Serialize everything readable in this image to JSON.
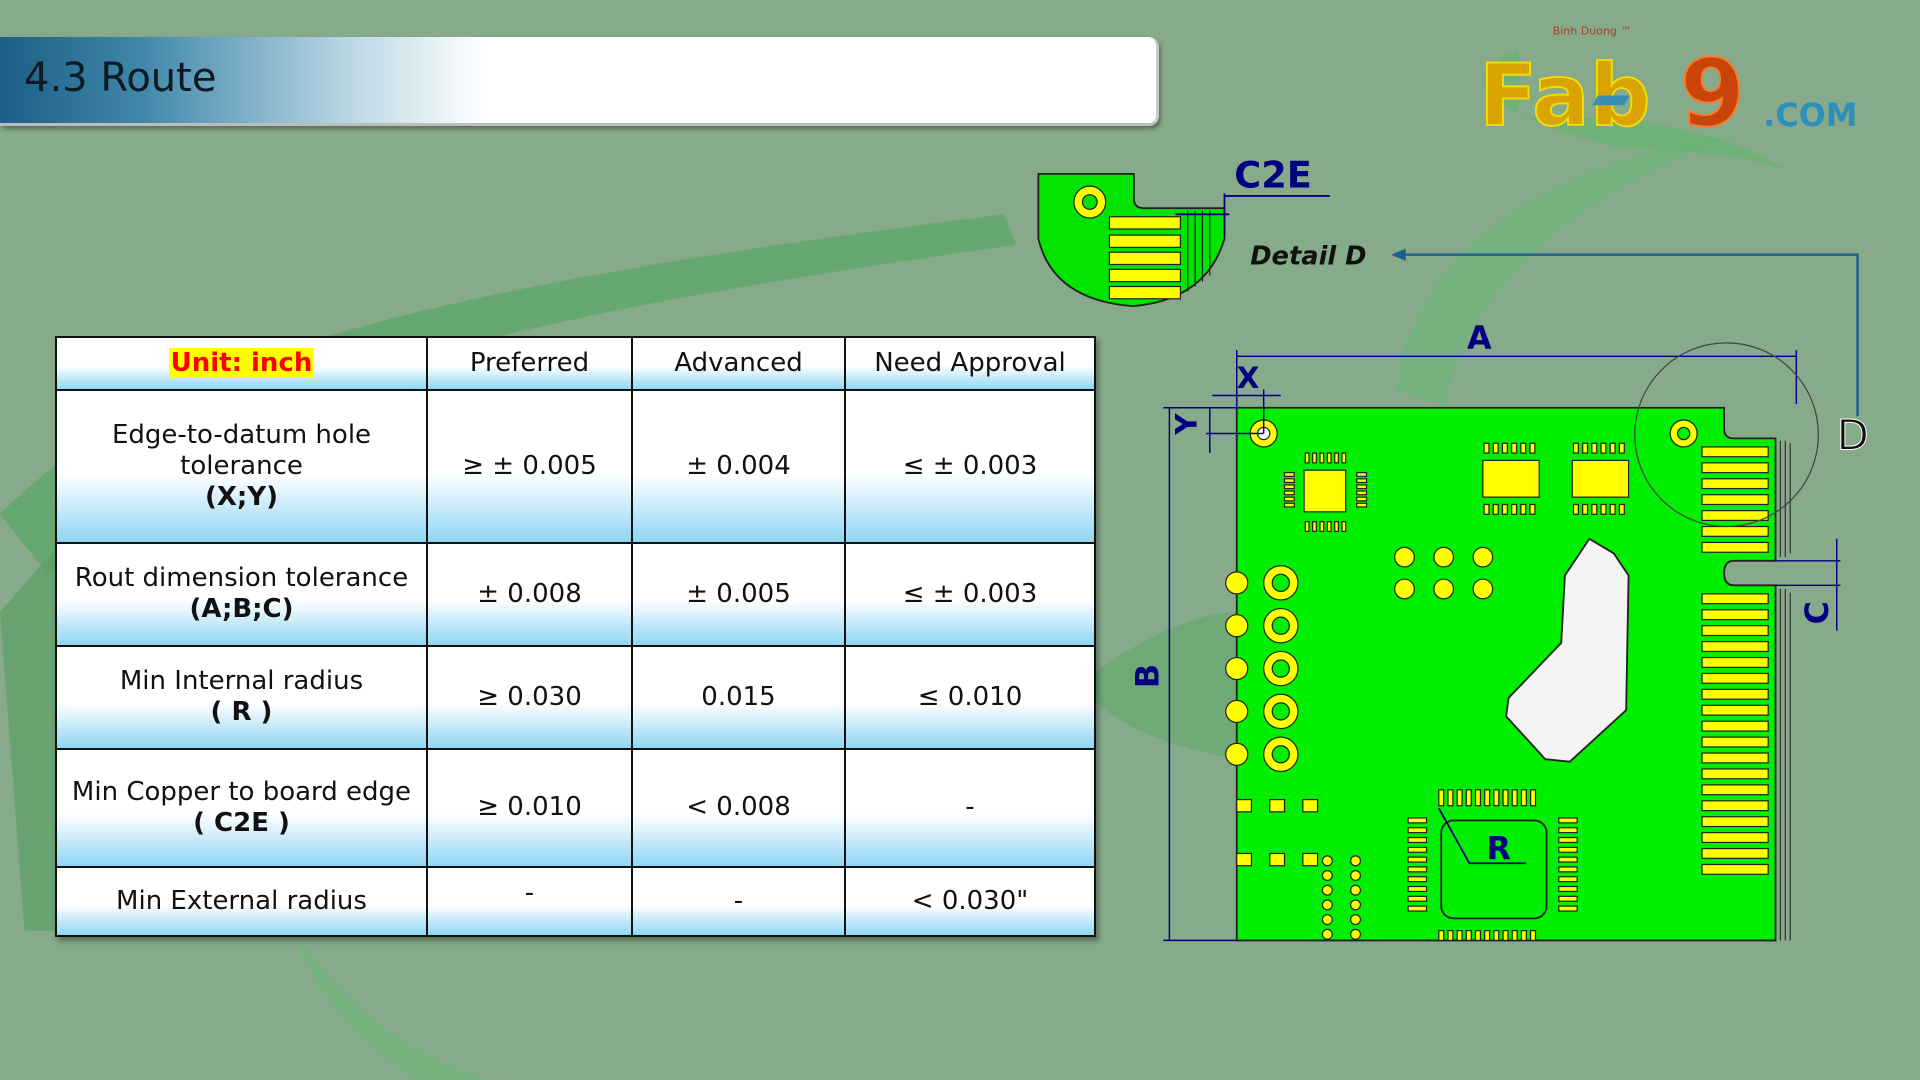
{
  "slide": {
    "title": "4.3 Route"
  },
  "logo": {
    "text": "Fab9",
    "tagline": "Binh Duong TM",
    "suffix": ".COM"
  },
  "colors": {
    "board": "#00ee00",
    "pad": "#ffff00",
    "dimension": "#000080",
    "header_yellow": "#ffff00",
    "unit_red": "#ff0000"
  },
  "table": {
    "unit_label": "Unit: inch",
    "headers": [
      "Preferred",
      "Advanced",
      "Need Approval"
    ],
    "rows": [
      {
        "label": "Edge-to-datum hole tolerance",
        "code": "(X;Y)",
        "values": [
          "≥ ± 0.005",
          "± 0.004",
          "≤ ± 0.003"
        ]
      },
      {
        "label": "Rout dimension tolerance",
        "code": "(A;B;C)",
        "values": [
          "± 0.008",
          "± 0.005",
          "≤ ± 0.003"
        ]
      },
      {
        "label": "Min Internal radius",
        "code": "( R )",
        "values": [
          "≥ 0.030",
          "0.015",
          "≤ 0.010"
        ]
      },
      {
        "label": "Min Copper to board edge",
        "code": "( C2E )",
        "values": [
          "≥ 0.010",
          "< 0.008",
          "-"
        ]
      },
      {
        "label": "Min External radius",
        "code": "",
        "values": [
          "-",
          "-",
          "< 0.030\""
        ]
      }
    ]
  },
  "diagram": {
    "labels": {
      "a": "A",
      "b": "B",
      "c": "C",
      "x": "X",
      "y": "Y",
      "r": "R",
      "d": "D",
      "c2e": "C2E",
      "detail": "Detail D"
    }
  }
}
